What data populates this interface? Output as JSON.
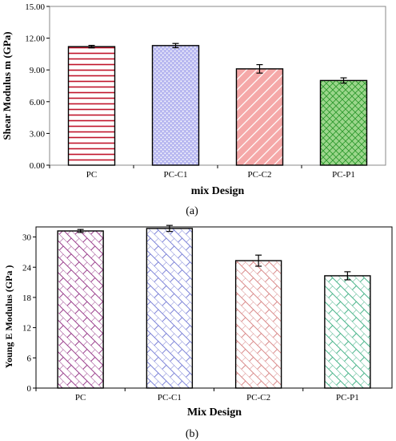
{
  "chart_data": [
    {
      "type": "bar",
      "panel_label": "(a)",
      "categories": [
        "PC",
        "PC-C1",
        "PC-C2",
        "PC-P1"
      ],
      "series": [
        {
          "values": [
            11.2,
            11.3,
            9.1,
            8.0
          ],
          "errors": [
            0.12,
            0.2,
            0.4,
            0.25
          ]
        }
      ],
      "bar_colors": [
        "#c0142a",
        "#5a5acd",
        "#e05050",
        "#2e9a2e"
      ],
      "bar_fills": [
        "#ffffff",
        "#b8b8f0",
        "#f5a8a8",
        "#9cd68c"
      ],
      "patterns": [
        "horizontal-lines",
        "dots",
        "diagonal-lines",
        "crosshatch"
      ],
      "xlabel": "mix Design",
      "ylabel": "Shear  Modulus  m (GPa)",
      "ylim": [
        0,
        15
      ],
      "yticks": [
        "0.00",
        "3.00",
        "6.00",
        "9.00",
        "12.00",
        "15.00"
      ],
      "grid": false
    },
    {
      "type": "bar",
      "panel_label": "(b)",
      "categories": [
        "PC",
        "PC-C1",
        "PC-C2",
        "PC-P1"
      ],
      "series": [
        {
          "values": [
            31.2,
            31.7,
            25.3,
            22.3
          ],
          "errors": [
            0.3,
            0.6,
            1.1,
            0.8
          ]
        }
      ],
      "bar_colors": [
        "#9a3f8c",
        "#7e84d8",
        "#d98a8a",
        "#49b48a"
      ],
      "patterns": [
        "brick",
        "brick",
        "brick",
        "brick"
      ],
      "xlabel": "Mix Design",
      "ylabel": "Young  E Modulus (GPa )",
      "ylim": [
        0,
        32
      ],
      "yticks": [
        "0",
        "6",
        "12",
        "18",
        "24",
        "30"
      ],
      "grid": false
    }
  ]
}
